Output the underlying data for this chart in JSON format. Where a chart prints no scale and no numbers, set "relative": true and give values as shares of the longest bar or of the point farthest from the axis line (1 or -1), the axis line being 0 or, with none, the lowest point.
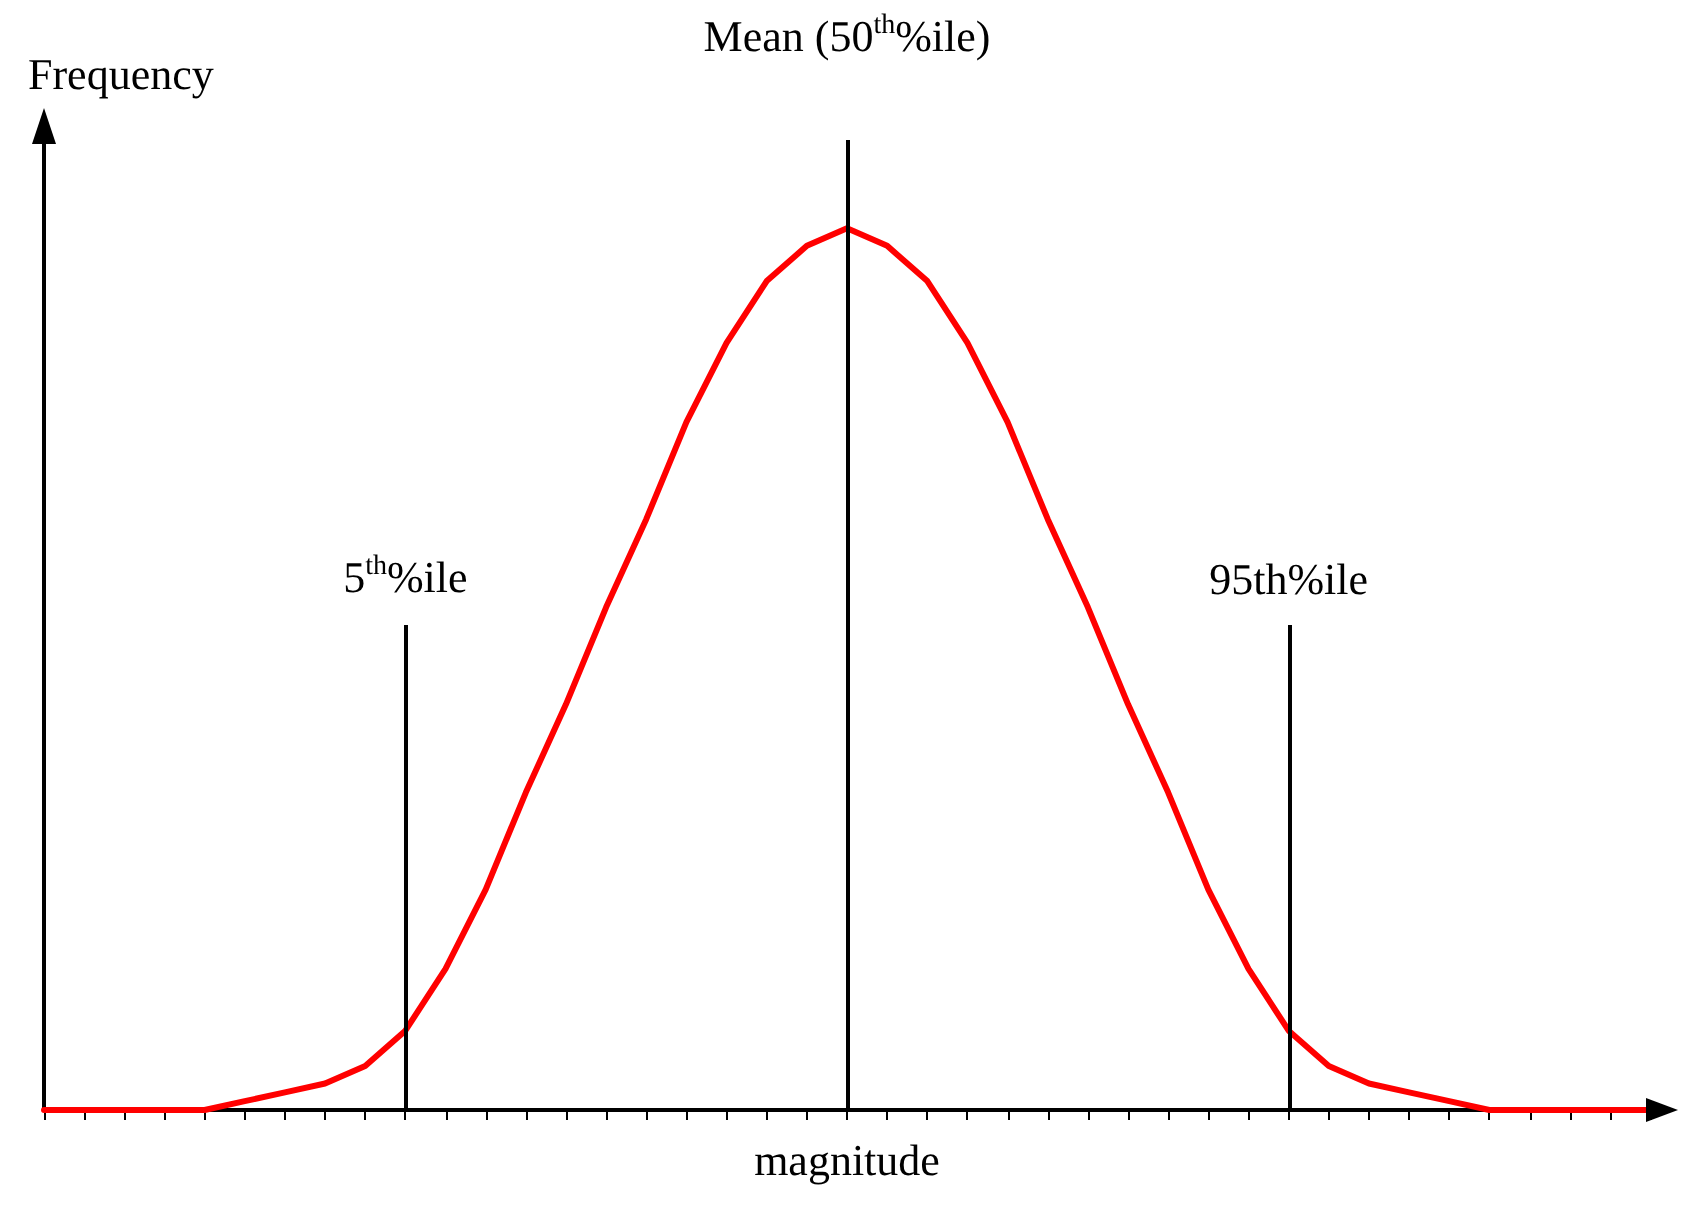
{
  "chart_data": {
    "type": "line",
    "relative": true,
    "ylabel": "Frequency",
    "xlabel": "magnitude",
    "categories": [
      null,
      null,
      null,
      null,
      null,
      null,
      null,
      null,
      null,
      null,
      null,
      null,
      null,
      null,
      null,
      null,
      null,
      null,
      null,
      null,
      null,
      null,
      null,
      null,
      null,
      null,
      null,
      null,
      null,
      null,
      null,
      null,
      null,
      null,
      null,
      null,
      null,
      null,
      null,
      null,
      null
    ],
    "series": [
      {
        "color": "#ff0000",
        "values": [
          0,
          0,
          0,
          0,
          0,
          0.01,
          0.02,
          0.03,
          0.05,
          0.09,
          0.16,
          0.25,
          0.36,
          0.46,
          0.57,
          0.67,
          0.78,
          0.87,
          0.94,
          0.98,
          1,
          0.98,
          0.94,
          0.87,
          0.78,
          0.67,
          0.57,
          0.46,
          0.36,
          0.25,
          0.16,
          0.09,
          0.05,
          0.03,
          0.02,
          0.01,
          0,
          0,
          0,
          0,
          0
        ]
      }
    ],
    "annotations": [
      "5$^{th}$%ile",
      "Mean (50$^{th}$%ile)",
      "95th%ile"
    ],
    "grid": false,
    "marker": "none",
    "line_style": "solid"
  }
}
